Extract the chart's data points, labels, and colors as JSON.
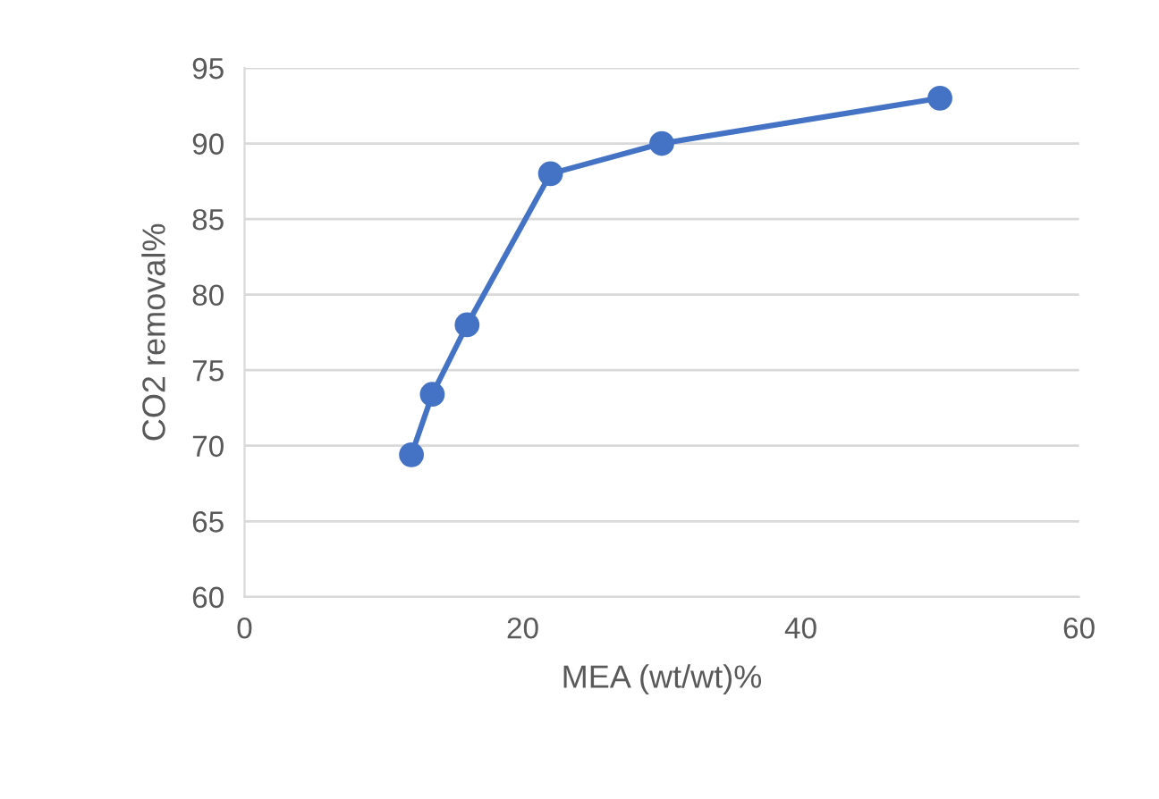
{
  "chart_data": {
    "type": "line",
    "xlabel": "MEA (wt/wt)%",
    "ylabel": "CO2 removal%",
    "series": [
      {
        "color": "#4472c4",
        "x": [
          12,
          13.5,
          16,
          22,
          30,
          50
        ],
        "values": [
          69.4,
          73.4,
          78,
          88,
          90,
          93
        ]
      }
    ],
    "xlim": [
      0,
      60
    ],
    "xticks": [
      0,
      20,
      40,
      60
    ],
    "ylim": [
      60,
      95
    ],
    "yticks": [
      60,
      65,
      70,
      75,
      80,
      85,
      90,
      95
    ],
    "grid": "y",
    "marker": "circle",
    "line_style": "solid"
  }
}
